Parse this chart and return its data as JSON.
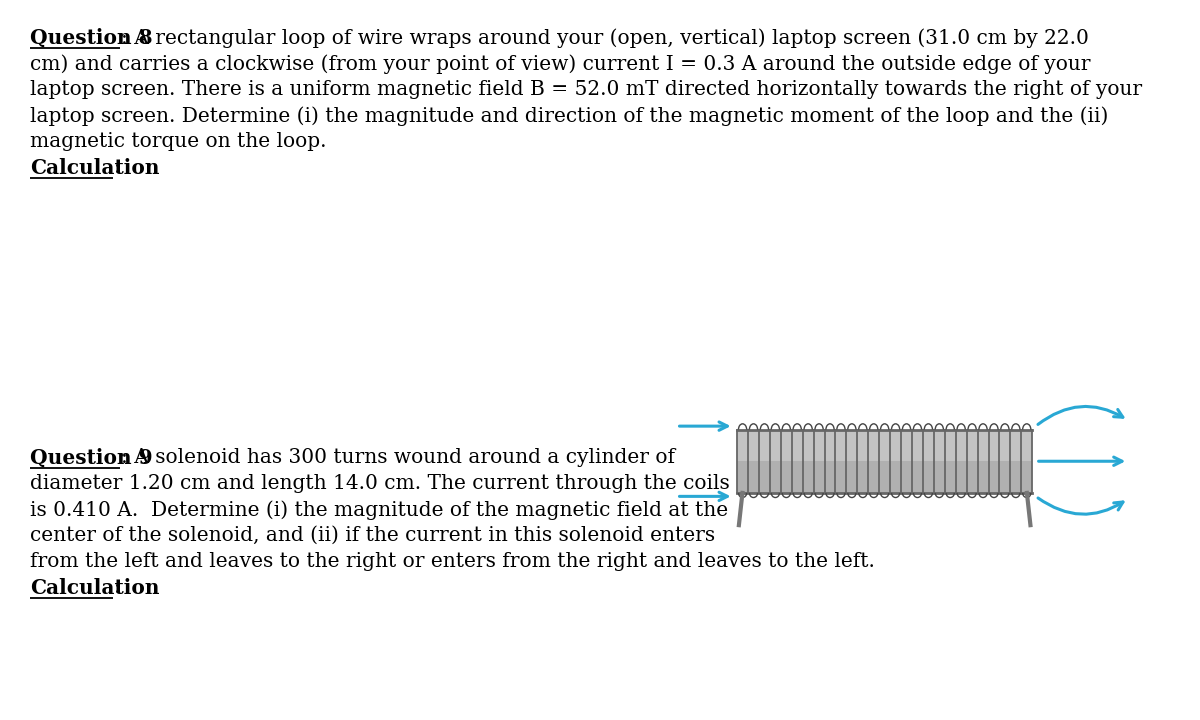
{
  "background_color": "#ffffff",
  "q8_label": "Question 8",
  "q8_body": ": A rectangular loop of wire wraps around your (open, vertical) laptop screen (31.0 cm by 22.0\ncm) and carries a clockwise (from your point of view) current I = 0.3 A around the outside edge of your\nlaptop screen. There is a uniform magnetic field B = 52.0 mT directed horizontally towards the right of your\nlaptop screen. Determine (i) the magnitude and direction of the magnetic moment of the loop and the (ii)\nmagnetic torque on the loop.",
  "q8_calc_label": "Calculation",
  "q9_label": "Question 9",
  "q9_line1_after": ": A solenoid has 300 turns wound around a cylinder of",
  "q9_line2": "diameter 1.20 cm and length 14.0 cm. The current through the coils",
  "q9_line3": "is 0.410 A.  Determine (i) the magnitude of the magnetic field at the",
  "q9_line4": "center of the solenoid, and (ii) if the current in this solenoid enters",
  "q9_line5": "from the left and leaves to the right or enters from the right and leaves to the left.",
  "q9_calc_label": "Calculation",
  "font_size": 14.5,
  "arrow_color": "#29a8d4",
  "num_coils": 27,
  "coil_color_dark": "#666666",
  "coil_color_body": "#b0b0b0",
  "coil_color_light": "#d4d4d4",
  "leg_color": "#777777"
}
